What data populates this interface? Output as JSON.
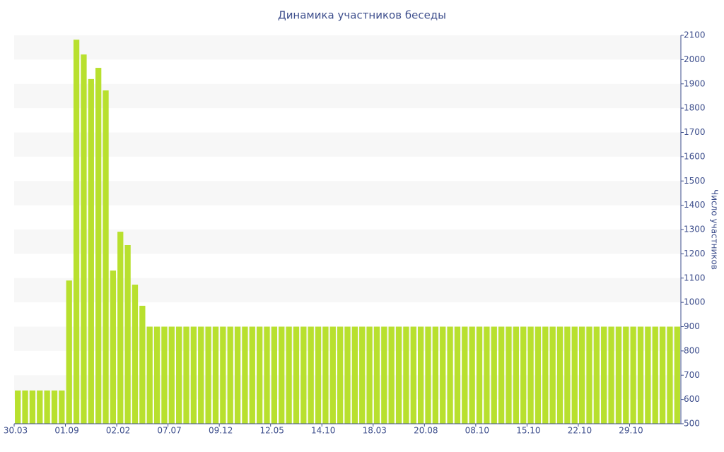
{
  "chart_data": {
    "type": "bar",
    "title": "Динамика участников беседы",
    "y_axis_label": "Число участников",
    "categories": [
      "30.03",
      null,
      null,
      null,
      null,
      null,
      null,
      "01.09",
      null,
      null,
      null,
      null,
      null,
      null,
      "02.02",
      null,
      null,
      null,
      null,
      null,
      null,
      "07.07",
      null,
      null,
      null,
      null,
      null,
      null,
      "09.12",
      null,
      null,
      null,
      null,
      null,
      null,
      "12.05",
      null,
      null,
      null,
      null,
      null,
      null,
      "14.10",
      null,
      null,
      null,
      null,
      null,
      null,
      "18.03",
      null,
      null,
      null,
      null,
      null,
      null,
      "20.08",
      null,
      null,
      null,
      null,
      null,
      null,
      "08.10",
      null,
      null,
      null,
      null,
      null,
      null,
      "15.10",
      null,
      null,
      null,
      null,
      null,
      null,
      "22.10",
      null,
      null,
      null,
      null,
      null,
      null,
      "29.10",
      null,
      null,
      null,
      null,
      null,
      null
    ],
    "values": [
      637,
      637,
      637,
      637,
      637,
      637,
      637,
      1090,
      2082,
      2021,
      1920,
      1966,
      1873,
      1131,
      1291,
      1236,
      1073,
      986,
      900,
      900,
      900,
      900,
      900,
      900,
      900,
      900,
      900,
      900,
      900,
      900,
      900,
      900,
      900,
      900,
      900,
      900,
      900,
      900,
      900,
      900,
      900,
      900,
      900,
      900,
      900,
      900,
      900,
      900,
      900,
      900,
      900,
      900,
      900,
      900,
      900,
      900,
      900,
      900,
      900,
      900,
      900,
      900,
      900,
      900,
      900,
      900,
      900,
      900,
      900,
      900,
      900,
      900,
      900,
      900,
      900,
      900,
      900,
      900,
      900,
      900,
      900,
      900,
      900,
      900,
      900,
      900,
      900,
      900,
      900,
      900,
      900
    ],
    "color": "#b8e02e",
    "ylim": [
      500,
      2100
    ],
    "yticks": [
      500,
      600,
      700,
      800,
      900,
      1000,
      1100,
      1200,
      1300,
      1400,
      1500,
      1600,
      1700,
      1800,
      1900,
      2000,
      2100
    ],
    "y_axis_side": "right",
    "grid": "bands"
  }
}
